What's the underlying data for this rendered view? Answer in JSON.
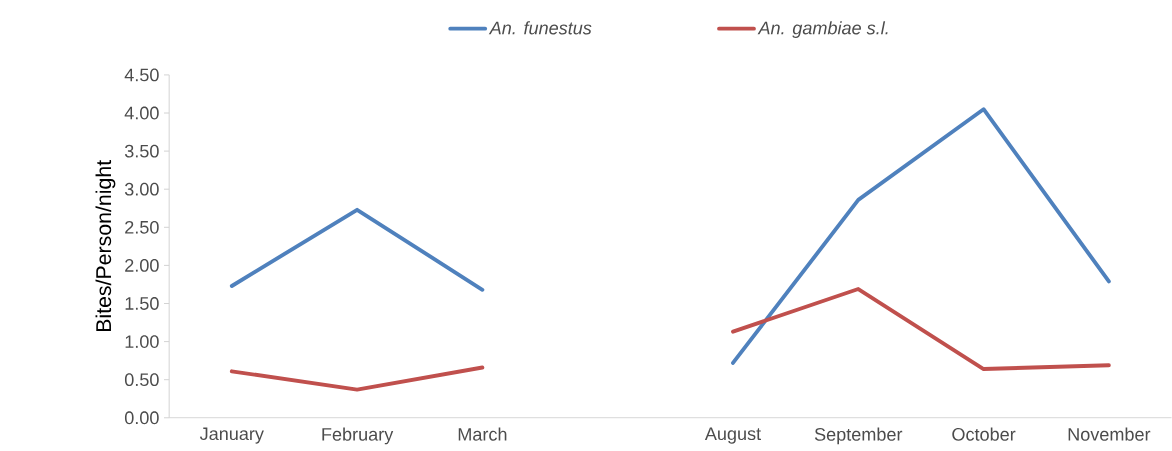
{
  "chart_data": {
    "type": "line",
    "ylabel": "Bites/Person/night",
    "categories": [
      "January",
      "February",
      "March",
      null,
      "August",
      "September",
      "October",
      "November"
    ],
    "series": [
      {
        "name": "An. funestus",
        "color": "#4f81bd",
        "values": [
          1.73,
          2.73,
          1.68,
          null,
          0.72,
          2.86,
          4.05,
          1.79
        ]
      },
      {
        "name": "An. gambiae s.l.",
        "color": "#c0504d",
        "values": [
          0.61,
          0.37,
          0.66,
          null,
          1.13,
          1.69,
          0.64,
          0.69
        ]
      }
    ],
    "ylim": [
      0,
      4.5
    ],
    "yticks": [
      {
        "value": 0,
        "label": "0.00"
      },
      {
        "value": 0.5,
        "label": "0.50"
      },
      {
        "value": 1,
        "label": "1.00"
      },
      {
        "value": 1.5,
        "label": "1.50"
      },
      {
        "value": 2,
        "label": "2.00"
      },
      {
        "value": 2.5,
        "label": "2.50"
      },
      {
        "value": 3,
        "label": "3.00"
      },
      {
        "value": 3.5,
        "label": "3.50"
      },
      {
        "value": 4,
        "label": "4.00"
      },
      {
        "value": 4.5,
        "label": "4.50"
      }
    ],
    "legend": "top",
    "marker": "none",
    "line_style": "solid"
  }
}
